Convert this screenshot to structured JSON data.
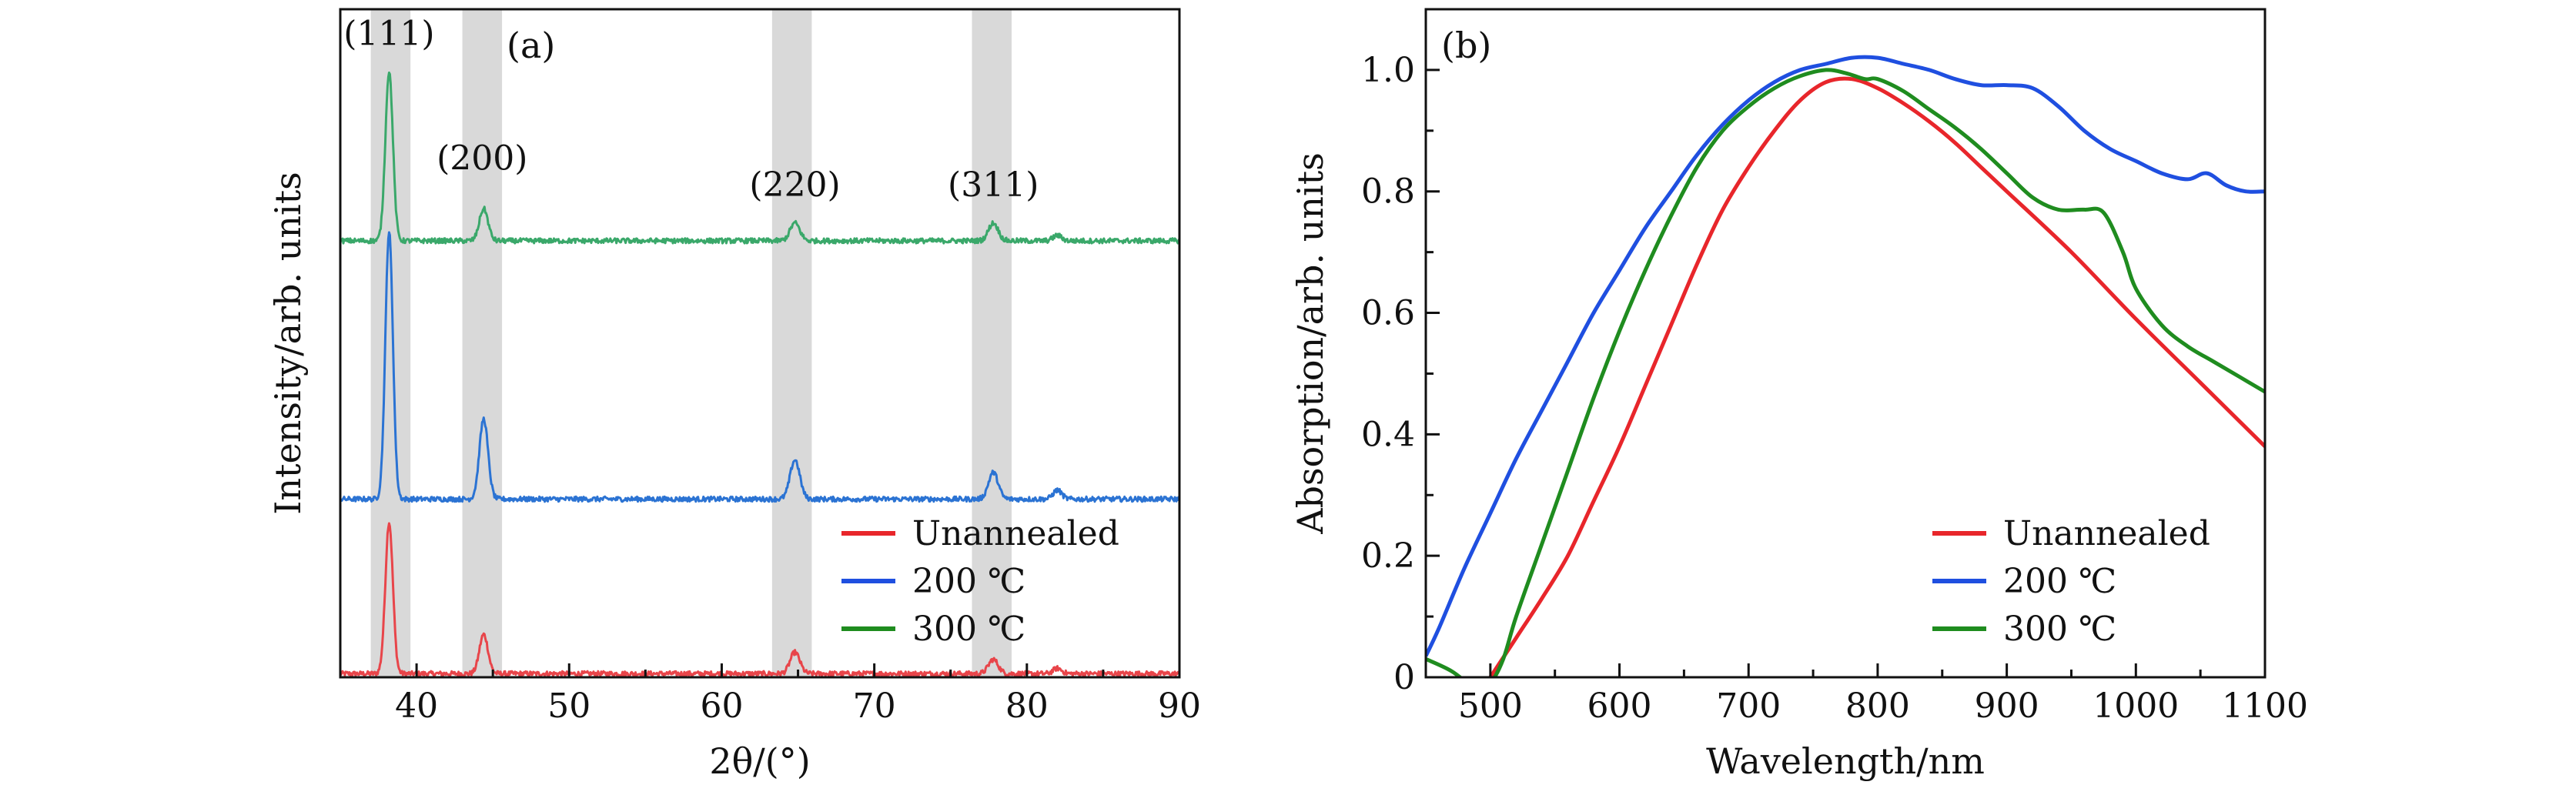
{
  "chart_data": [
    {
      "panel": "(a)",
      "type": "line",
      "xlabel": "2θ/(°)",
      "ylabel": "Intensity/arb. units",
      "xlim": [
        35,
        90
      ],
      "xticks": [
        40,
        50,
        60,
        70,
        80,
        90
      ],
      "ylim": [
        0,
        3.75
      ],
      "yticks_shown": false,
      "shaded_bands": [
        [
          37.0,
          39.6
        ],
        [
          43.0,
          45.6
        ],
        [
          63.3,
          65.9
        ],
        [
          76.4,
          79.0
        ]
      ],
      "peak_labels": [
        {
          "text": "(111)",
          "x": 38.2,
          "y": 3.55
        },
        {
          "text": "(200)",
          "x": 44.3,
          "y": 2.85
        },
        {
          "text": "(220)",
          "x": 64.8,
          "y": 2.7
        },
        {
          "text": "(311)",
          "x": 77.8,
          "y": 2.7
        }
      ],
      "peaks": [
        {
          "position": 38.2,
          "width": 0.35
        },
        {
          "position": 44.4,
          "width": 0.4
        },
        {
          "position": 64.8,
          "width": 0.45
        },
        {
          "position": 77.8,
          "width": 0.45
        },
        {
          "position": 82.0,
          "width": 0.4
        }
      ],
      "series": [
        {
          "name": "Unannealed",
          "color": "#e8454a",
          "baseline": 0.02,
          "peak_heights": [
            0.85,
            0.22,
            0.12,
            0.08,
            0.03
          ],
          "noise": 0.014
        },
        {
          "name": "200 ℃",
          "color": "#2b73d3",
          "baseline": 1.0,
          "peak_heights": [
            1.5,
            0.45,
            0.22,
            0.15,
            0.05
          ],
          "noise": 0.014
        },
        {
          "name": "300 ℃",
          "color": "#3aa86a",
          "baseline": 2.45,
          "peak_heights": [
            0.95,
            0.18,
            0.1,
            0.1,
            0.03
          ],
          "noise": 0.014
        }
      ],
      "legend": {
        "position": "lower-right",
        "entries": [
          "Unannealed",
          "200 ℃",
          "300 ℃"
        ],
        "colors": [
          "#e8262b",
          "#1f4fe0",
          "#1f8c1f"
        ]
      }
    },
    {
      "panel": "(b)",
      "type": "line",
      "xlabel": "Wavelength/nm",
      "ylabel": "Absorption/arb. units",
      "xlim": [
        450,
        1100
      ],
      "xticks": [
        500,
        600,
        700,
        800,
        900,
        1000,
        1100
      ],
      "ylim": [
        0,
        1.1
      ],
      "yticks": [
        0,
        0.2,
        0.4,
        0.6,
        0.8,
        1.0
      ],
      "ytick_labels": [
        "0",
        "0.2",
        "0.4",
        "0.6",
        "0.8",
        "1.0"
      ],
      "series": [
        {
          "name": "Unannealed",
          "color": "#e8262b",
          "x": [
            500,
            520,
            540,
            560,
            580,
            600,
            620,
            640,
            660,
            680,
            700,
            720,
            740,
            760,
            780,
            800,
            820,
            840,
            860,
            880,
            900,
            950,
            1000,
            1050,
            1100
          ],
          "y": [
            0,
            0.065,
            0.13,
            0.2,
            0.29,
            0.38,
            0.48,
            0.58,
            0.68,
            0.77,
            0.84,
            0.9,
            0.95,
            0.98,
            0.985,
            0.97,
            0.945,
            0.915,
            0.88,
            0.84,
            0.8,
            0.7,
            0.59,
            0.485,
            0.38
          ]
        },
        {
          "name": "200 ℃",
          "color": "#1f4fe0",
          "x": [
            450,
            460,
            480,
            500,
            520,
            540,
            560,
            580,
            600,
            620,
            640,
            660,
            680,
            700,
            720,
            740,
            760,
            780,
            800,
            820,
            840,
            860,
            880,
            900,
            920,
            940,
            960,
            980,
            1000,
            1020,
            1040,
            1055,
            1070,
            1085,
            1100
          ],
          "y": [
            0.035,
            0.08,
            0.18,
            0.27,
            0.36,
            0.44,
            0.52,
            0.6,
            0.67,
            0.74,
            0.8,
            0.86,
            0.91,
            0.95,
            0.98,
            1.0,
            1.01,
            1.02,
            1.02,
            1.01,
            1.0,
            0.985,
            0.975,
            0.975,
            0.97,
            0.94,
            0.9,
            0.87,
            0.85,
            0.83,
            0.82,
            0.83,
            0.81,
            0.8,
            0.8
          ]
        },
        {
          "name": "300 ℃",
          "color": "#1f8c1f",
          "x": [
            450,
            470,
            490,
            500,
            510,
            520,
            540,
            560,
            580,
            600,
            620,
            640,
            660,
            680,
            700,
            720,
            740,
            760,
            775,
            790,
            800,
            820,
            840,
            860,
            880,
            900,
            920,
            940,
            960,
            975,
            990,
            1000,
            1020,
            1040,
            1060,
            1080,
            1100
          ],
          "y": [
            0.03,
            0.01,
            -0.02,
            -0.01,
            0.03,
            0.1,
            0.22,
            0.34,
            0.46,
            0.57,
            0.67,
            0.76,
            0.84,
            0.9,
            0.94,
            0.97,
            0.99,
            1.0,
            0.995,
            0.985,
            0.985,
            0.965,
            0.935,
            0.905,
            0.87,
            0.83,
            0.79,
            0.77,
            0.77,
            0.765,
            0.7,
            0.64,
            0.58,
            0.545,
            0.52,
            0.495,
            0.47
          ]
        }
      ],
      "legend": {
        "position": "lower-right",
        "entries": [
          "Unannealed",
          "200 ℃",
          "300 ℃"
        ],
        "colors": [
          "#e8262b",
          "#1f4fe0",
          "#1f8c1f"
        ]
      }
    }
  ]
}
